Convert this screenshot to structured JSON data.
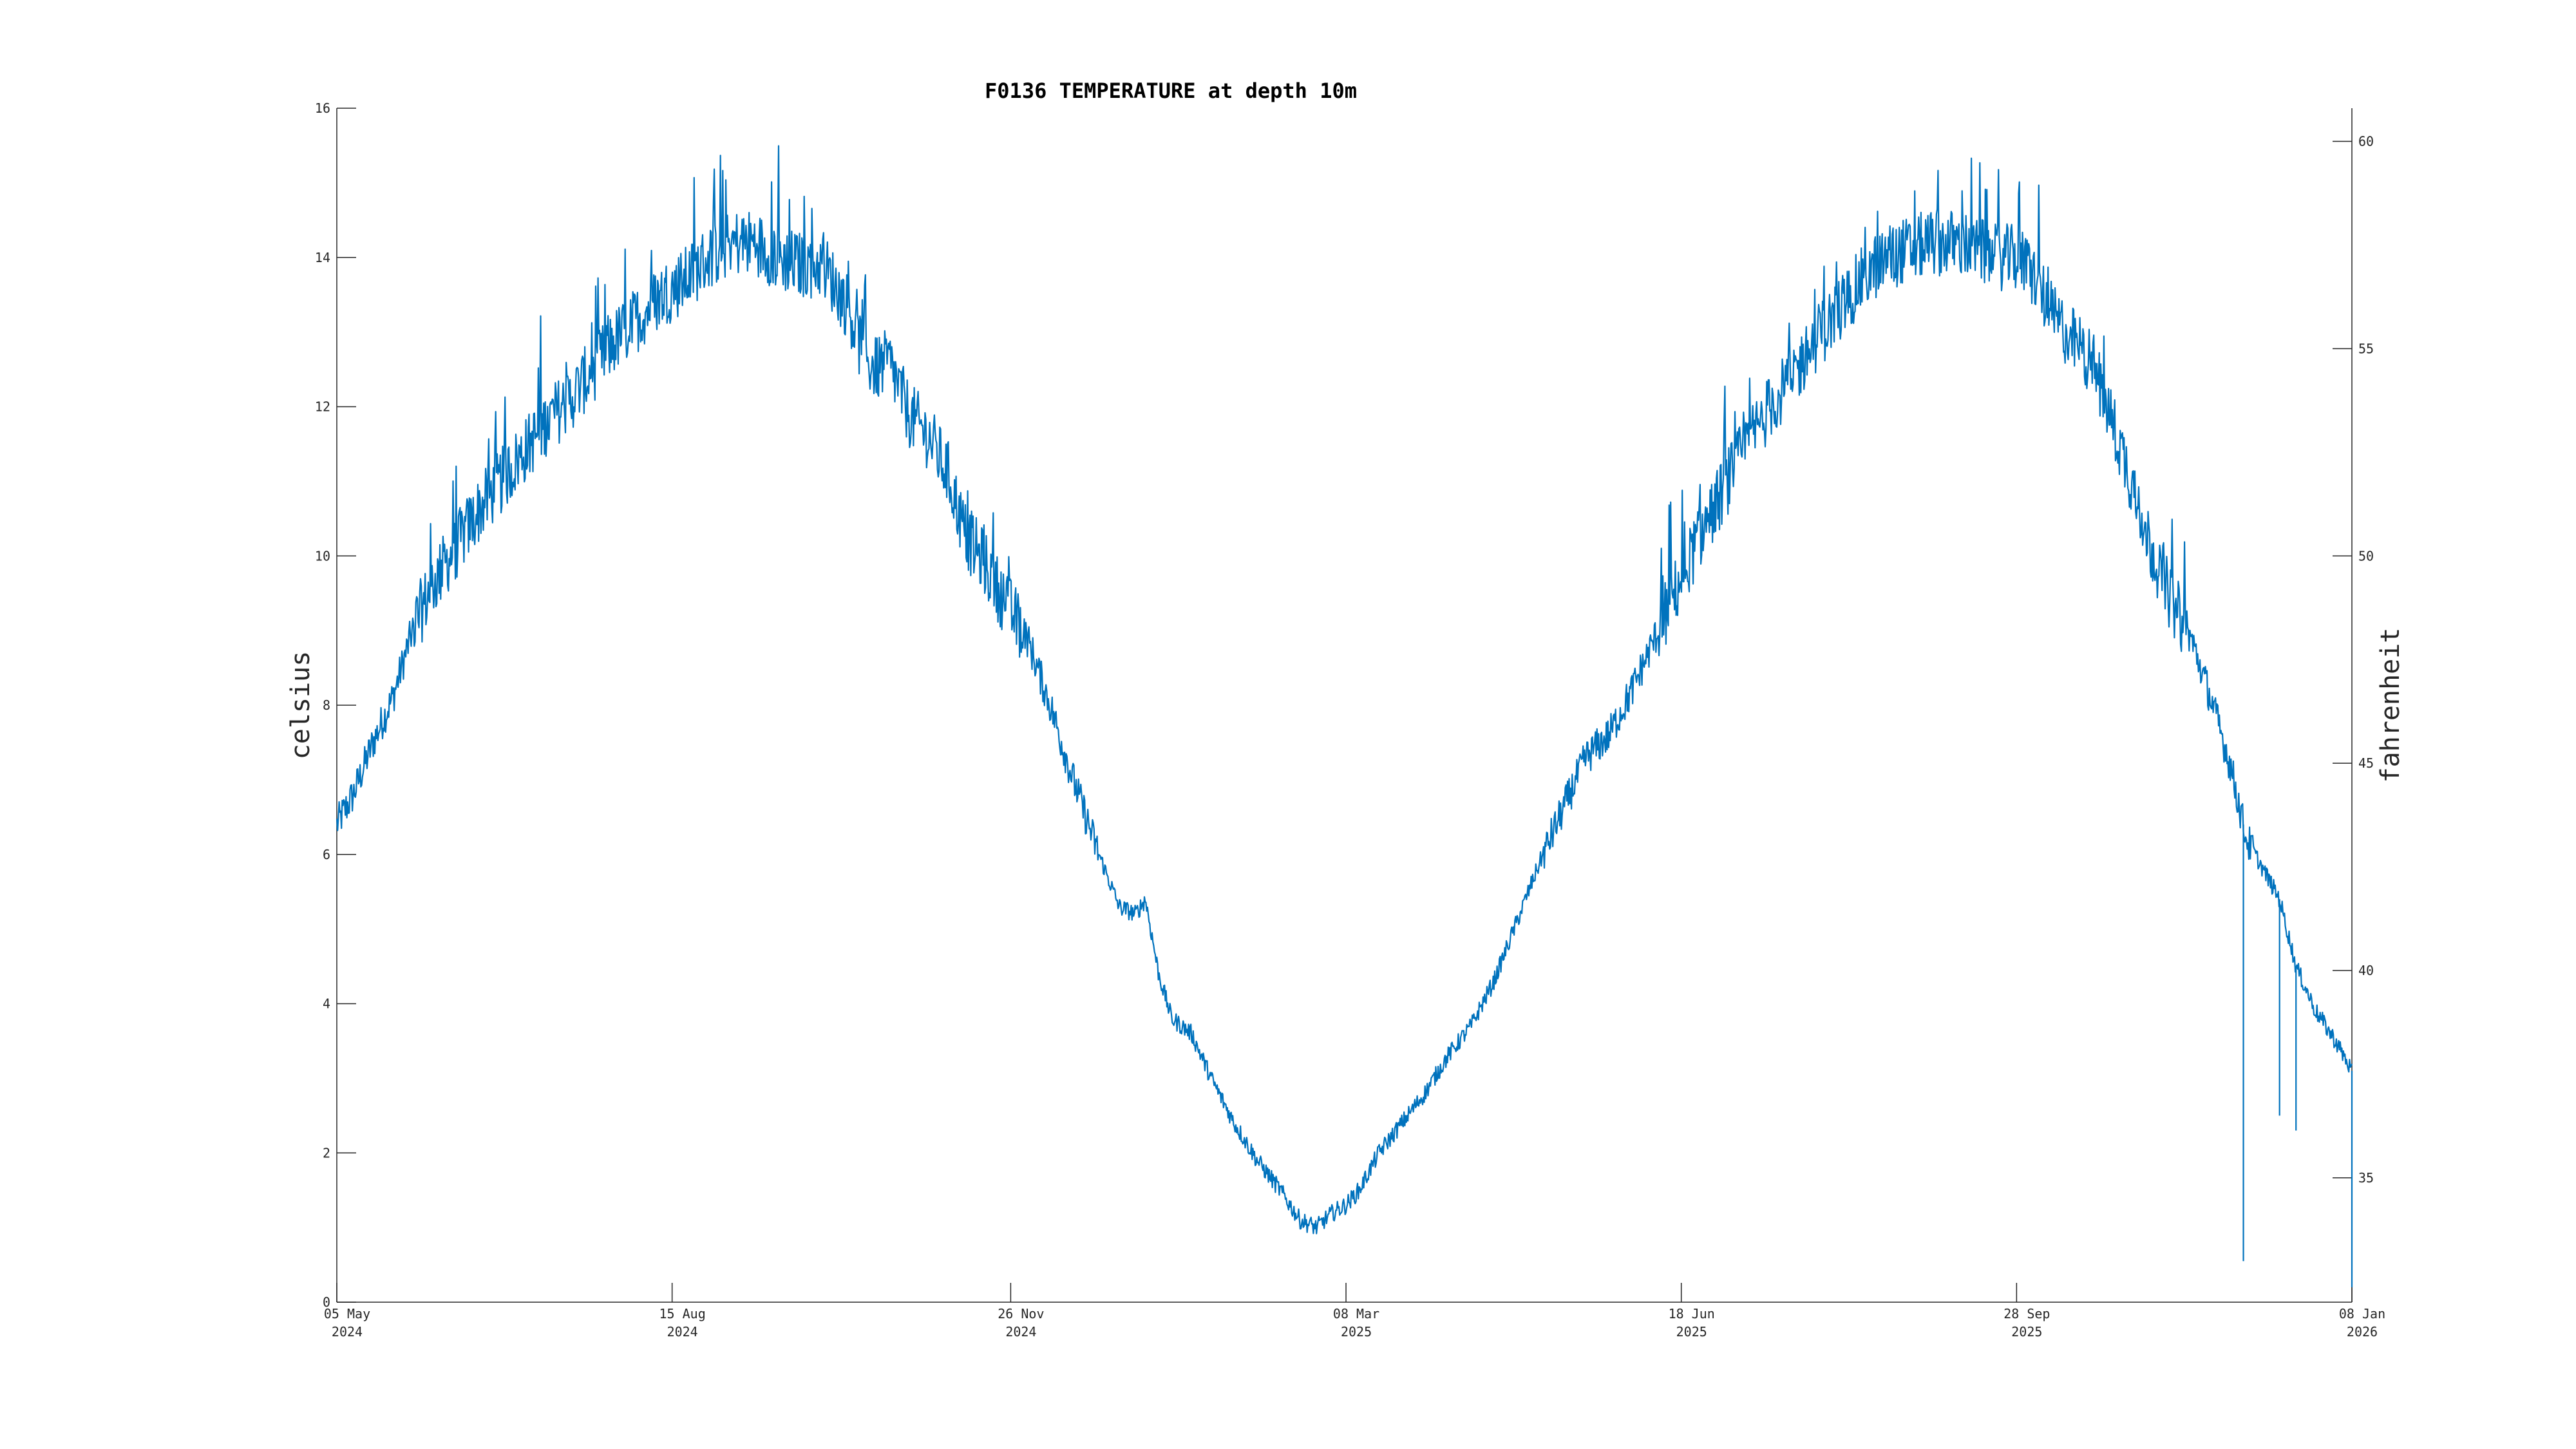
{
  "chart_data": {
    "type": "line",
    "title": "F0136 TEMPERATURE at depth 10m",
    "ylabel": "celsius",
    "y2label": "fahrenheit",
    "xlim": [
      "2024-05-05",
      "2026-01-08"
    ],
    "ylim": [
      0,
      16
    ],
    "y2lim": [
      32,
      60.8
    ],
    "x_ticks": [
      {
        "date": "2024-05-05",
        "line1": "05 May",
        "line2": "2024"
      },
      {
        "date": "2024-08-15",
        "line1": "15 Aug",
        "line2": "2024"
      },
      {
        "date": "2024-11-26",
        "line1": "26 Nov",
        "line2": "2024"
      },
      {
        "date": "2025-03-08",
        "line1": "08 Mar",
        "line2": "2025"
      },
      {
        "date": "2025-06-18",
        "line1": "18 Jun",
        "line2": "2025"
      },
      {
        "date": "2025-09-28",
        "line1": "28 Sep",
        "line2": "2025"
      },
      {
        "date": "2026-01-08",
        "line1": "08 Jan",
        "line2": "2026"
      }
    ],
    "y_ticks": [
      0,
      2,
      4,
      6,
      8,
      10,
      12,
      14,
      16
    ],
    "y2_ticks": [
      35,
      40,
      45,
      50,
      55,
      60
    ],
    "grid": false,
    "legend": "none",
    "series": [
      {
        "color": "#0072BD",
        "points": [
          [
            "2024-05-05",
            6.4
          ],
          [
            "2024-05-10",
            6.8
          ],
          [
            "2024-05-16",
            7.5
          ],
          [
            "2024-05-22",
            8.1
          ],
          [
            "2024-05-28",
            9.0
          ],
          [
            "2024-06-03",
            9.6
          ],
          [
            "2024-06-10",
            10.1
          ],
          [
            "2024-06-17",
            10.6
          ],
          [
            "2024-06-24",
            11.0
          ],
          [
            "2024-07-01",
            11.4
          ],
          [
            "2024-07-08",
            11.8
          ],
          [
            "2024-07-15",
            12.1
          ],
          [
            "2024-07-22",
            12.5
          ],
          [
            "2024-07-29",
            12.9
          ],
          [
            "2024-08-05",
            13.2
          ],
          [
            "2024-08-12",
            13.5
          ],
          [
            "2024-08-19",
            13.7
          ],
          [
            "2024-08-26",
            14.0
          ],
          [
            "2024-09-02",
            14.2
          ],
          [
            "2024-09-09",
            14.2
          ],
          [
            "2024-09-16",
            14.0
          ],
          [
            "2024-09-23",
            13.9
          ],
          [
            "2024-09-30",
            13.9
          ],
          [
            "2024-10-04",
            13.6
          ],
          [
            "2024-10-08",
            13.3
          ],
          [
            "2024-10-12",
            12.7
          ],
          [
            "2024-10-16",
            12.5
          ],
          [
            "2024-10-20",
            12.6
          ],
          [
            "2024-10-26",
            11.9
          ],
          [
            "2024-11-01",
            11.6
          ],
          [
            "2024-11-07",
            11.1
          ],
          [
            "2024-11-12",
            10.3
          ],
          [
            "2024-11-18",
            9.9
          ],
          [
            "2024-11-24",
            9.4
          ],
          [
            "2024-12-01",
            8.9
          ],
          [
            "2024-12-08",
            8.0
          ],
          [
            "2024-12-15",
            7.0
          ],
          [
            "2024-12-22",
            6.1
          ],
          [
            "2024-12-29",
            5.3
          ],
          [
            "2025-01-03",
            5.2
          ],
          [
            "2025-01-06",
            5.4
          ],
          [
            "2025-01-10",
            4.4
          ],
          [
            "2025-01-14",
            3.8
          ],
          [
            "2025-01-20",
            3.6
          ],
          [
            "2025-01-26",
            3.0
          ],
          [
            "2025-02-02",
            2.4
          ],
          [
            "2025-02-09",
            1.9
          ],
          [
            "2025-02-16",
            1.5
          ],
          [
            "2025-02-22",
            1.1
          ],
          [
            "2025-02-27",
            1.0
          ],
          [
            "2025-03-04",
            1.2
          ],
          [
            "2025-03-08",
            1.3
          ],
          [
            "2025-03-12",
            1.5
          ],
          [
            "2025-03-18",
            2.0
          ],
          [
            "2025-03-25",
            2.4
          ],
          [
            "2025-04-01",
            2.8
          ],
          [
            "2025-04-08",
            3.3
          ],
          [
            "2025-04-15",
            3.7
          ],
          [
            "2025-04-22",
            4.3
          ],
          [
            "2025-04-29",
            5.1
          ],
          [
            "2025-05-06",
            5.9
          ],
          [
            "2025-05-13",
            6.6
          ],
          [
            "2025-05-20",
            7.3
          ],
          [
            "2025-05-27",
            7.6
          ],
          [
            "2025-06-03",
            8.2
          ],
          [
            "2025-06-10",
            8.9
          ],
          [
            "2025-06-17",
            9.6
          ],
          [
            "2025-06-24",
            10.3
          ],
          [
            "2025-07-01",
            10.9
          ],
          [
            "2025-07-08",
            11.5
          ],
          [
            "2025-07-15",
            12.0
          ],
          [
            "2025-07-22",
            12.4
          ],
          [
            "2025-07-29",
            12.9
          ],
          [
            "2025-08-05",
            13.3
          ],
          [
            "2025-08-12",
            13.7
          ],
          [
            "2025-08-19",
            14.0
          ],
          [
            "2025-08-26",
            14.1
          ],
          [
            "2025-09-02",
            14.2
          ],
          [
            "2025-09-09",
            14.2
          ],
          [
            "2025-09-16",
            14.1
          ],
          [
            "2025-09-22",
            14.0
          ],
          [
            "2025-09-29",
            14.0
          ],
          [
            "2025-10-04",
            13.7
          ],
          [
            "2025-10-09",
            13.2
          ],
          [
            "2025-10-15",
            12.9
          ],
          [
            "2025-10-21",
            12.6
          ],
          [
            "2025-10-27",
            11.8
          ],
          [
            "2025-11-02",
            11.0
          ],
          [
            "2025-11-08",
            10.1
          ],
          [
            "2025-11-14",
            9.4
          ],
          [
            "2025-11-20",
            8.9
          ],
          [
            "2025-11-26",
            8.1
          ],
          [
            "2025-12-02",
            7.2
          ],
          [
            "2025-12-07",
            6.2
          ],
          [
            "2025-12-12",
            5.8
          ],
          [
            "2025-12-17",
            5.4
          ],
          [
            "2025-12-22",
            4.5
          ],
          [
            "2025-12-28",
            3.9
          ],
          [
            "2026-01-03",
            3.5
          ],
          [
            "2026-01-08",
            3.1
          ]
        ],
        "spikes": [
          [
            "2025-12-06",
            0.55
          ],
          [
            "2025-12-17",
            2.5
          ],
          [
            "2025-12-22",
            2.3
          ],
          [
            "2026-01-08",
            0.2
          ]
        ]
      }
    ]
  }
}
